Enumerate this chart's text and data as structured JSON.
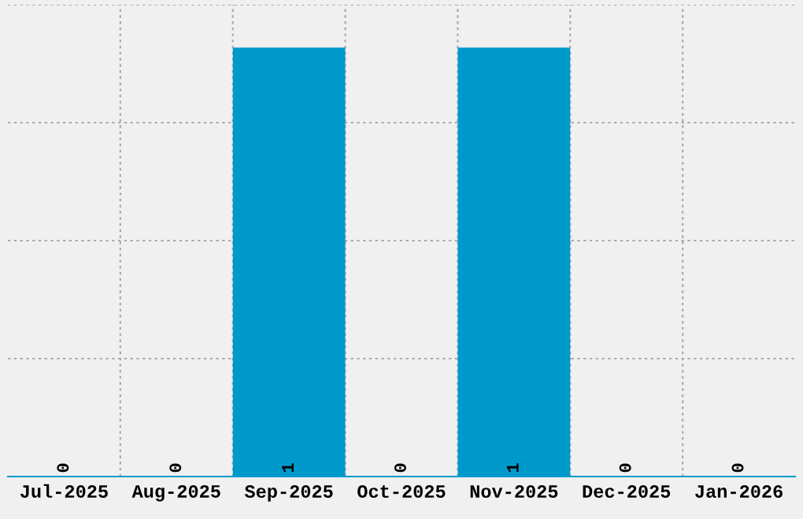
{
  "chart_data": {
    "type": "bar",
    "categories": [
      "Jul-2025",
      "Aug-2025",
      "Sep-2025",
      "Oct-2025",
      "Nov-2025",
      "Dec-2025",
      "Jan-2026"
    ],
    "values": [
      0,
      0,
      1,
      0,
      1,
      0,
      0
    ],
    "color": "#0099cc",
    "ylim": [
      0,
      1.1
    ],
    "yticks": [
      {
        "value": 0,
        "label": null
      },
      {
        "value": 0.275,
        "label": null
      },
      {
        "value": 0.55,
        "label": null
      },
      {
        "value": 0.825,
        "label": null
      },
      {
        "value": 1.1,
        "label": null
      }
    ],
    "tick_labels": "x",
    "data_labels": true,
    "grid": true
  }
}
